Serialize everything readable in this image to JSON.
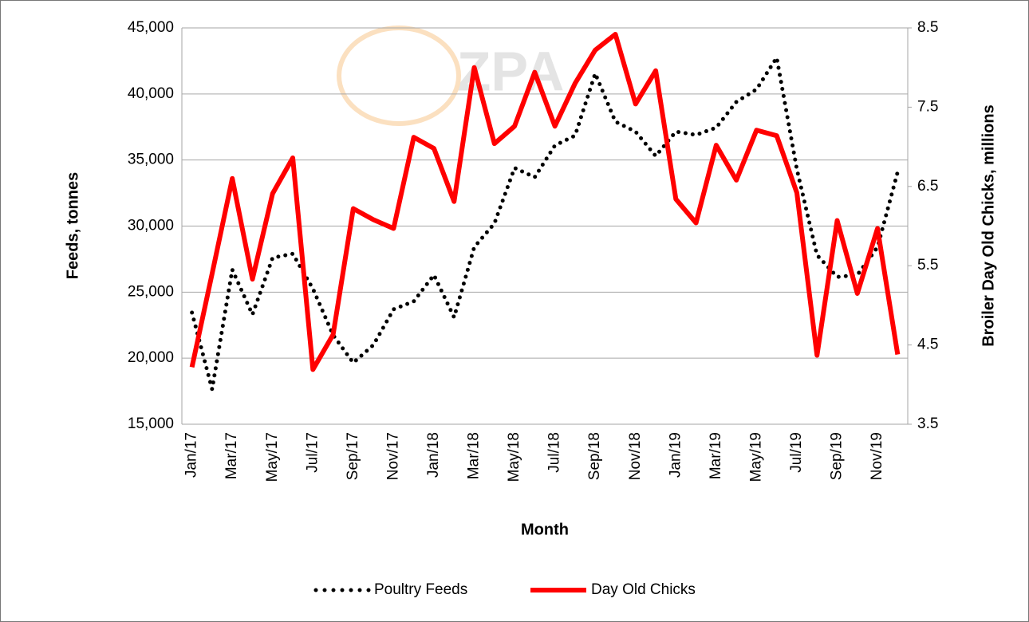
{
  "chart_data": {
    "type": "line",
    "watermark": "ZPA",
    "x_label": "Month",
    "y_label": "Feeds, tonnes",
    "y2_label": "Broiler Day Old Chicks, millions",
    "categories": [
      "Jan/17",
      null,
      "Mar/17",
      null,
      "May/17",
      null,
      "Jul/17",
      null,
      "Sep/17",
      null,
      "Nov/17",
      null,
      "Jan/18",
      null,
      "Mar/18",
      null,
      "May/18",
      null,
      "Jul/18",
      null,
      "Sep/18",
      null,
      "Nov/18",
      null,
      "Jan/19",
      null,
      "Mar/19",
      null,
      "May/19",
      null,
      "Jul/19",
      null,
      "Sep/19",
      null,
      "Nov/19",
      null
    ],
    "series": [
      {
        "name": "Poultry Feeds",
        "color": "#000000",
        "style": "dotted",
        "values": [
          23450,
          17650,
          26700,
          23300,
          27600,
          27900,
          25250,
          21750,
          19650,
          21000,
          23700,
          24300,
          26300,
          23100,
          28400,
          30200,
          34400,
          33700,
          36100,
          36850,
          41550,
          37900,
          37150,
          35300,
          37150,
          36900,
          37450,
          39400,
          40350,
          42750,
          34300,
          27800,
          26150,
          26300,
          28400,
          34100
        ]
      },
      {
        "name": "Day Old Chicks",
        "color": "#ff0000",
        "style": "solid",
        "axis": "y2",
        "values": [
          4.22,
          5.4,
          6.6,
          5.33,
          6.41,
          6.86,
          4.19,
          4.63,
          6.22,
          6.08,
          5.97,
          7.12,
          6.98,
          6.31,
          8.0,
          7.04,
          7.26,
          7.94,
          7.26,
          7.8,
          8.22,
          8.42,
          7.54,
          7.96,
          6.34,
          6.04,
          7.02,
          6.58,
          7.21,
          7.14,
          6.42,
          4.37,
          6.07,
          5.15,
          5.97,
          4.38
        ]
      }
    ],
    "ylim": [
      15000,
      45000
    ],
    "yticks": [
      {
        "value": 15000,
        "label": "15,000"
      },
      {
        "value": 20000,
        "label": "20,000"
      },
      {
        "value": 25000,
        "label": "25,000"
      },
      {
        "value": 30000,
        "label": "30,000"
      },
      {
        "value": 35000,
        "label": "35,000"
      },
      {
        "value": 40000,
        "label": "40,000"
      },
      {
        "value": 45000,
        "label": "45,000"
      }
    ],
    "y2lim": [
      3.5,
      8.5
    ],
    "y2ticks": [
      3.5,
      4.5,
      5.5,
      6.5,
      7.5,
      8.5
    ],
    "grid": true,
    "legend": "bottom"
  }
}
